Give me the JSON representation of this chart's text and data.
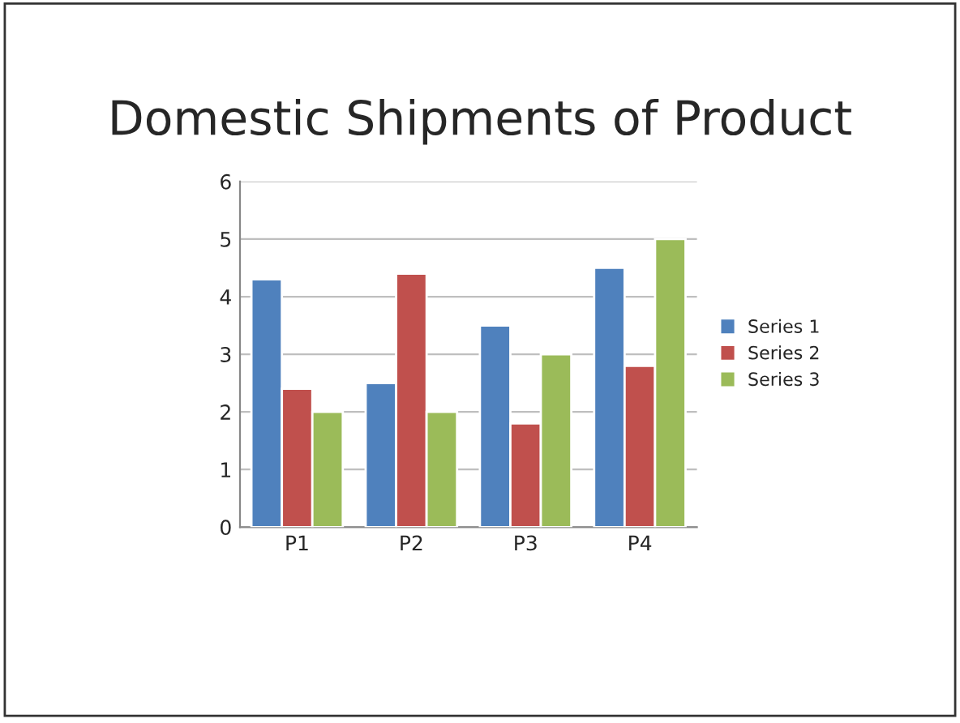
{
  "chart_data": {
    "type": "bar",
    "title": "Domestic Shipments of Product",
    "categories": [
      "P1",
      "P2",
      "P3",
      "P4"
    ],
    "series": [
      {
        "name": "Series 1",
        "color": "#4f81bd",
        "values": [
          4.3,
          2.5,
          3.5,
          4.5
        ]
      },
      {
        "name": "Series 2",
        "color": "#c0504d",
        "values": [
          2.4,
          4.4,
          1.8,
          2.8
        ]
      },
      {
        "name": "Series 3",
        "color": "#9bbb59",
        "values": [
          2,
          2,
          3,
          5
        ]
      }
    ],
    "ylim": [
      0,
      6
    ],
    "yticks": [
      0,
      1,
      2,
      3,
      4,
      5,
      6
    ],
    "grid": "y",
    "legend": "right"
  }
}
